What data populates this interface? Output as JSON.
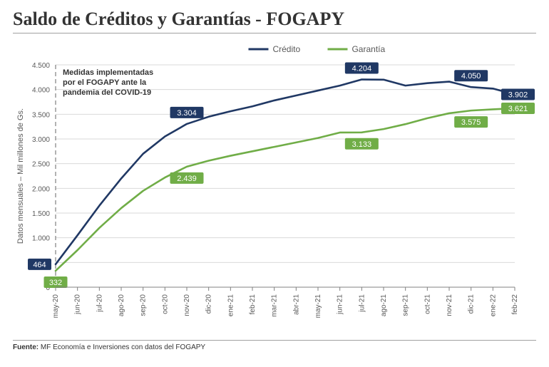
{
  "title": "Saldo de Créditos y Garantías - FOGAPY",
  "source_label": "Fuente:",
  "source_text": "MF Economía e Inversiones con datos del FOGAPY",
  "chart": {
    "type": "line",
    "background_color": "#ffffff",
    "grid_color": "#d9d9d9",
    "axis_label": "Datos mensuales – Mil millones de Gs.",
    "axis_label_fontsize": 11,
    "tick_fontsize": 10,
    "legend": {
      "items": [
        "Crédito",
        "Garantía"
      ],
      "fontsize": 12
    },
    "xlim": [
      0,
      21
    ],
    "ylim": [
      0,
      4500
    ],
    "ytick_step": 500,
    "yticks": [
      "0",
      "500",
      "1.000",
      "1.500",
      "2.000",
      "2.500",
      "3.000",
      "3.500",
      "4.000",
      "4.500"
    ],
    "categories": [
      "may-20",
      "jun-20",
      "jul-20",
      "ago-20",
      "sep-20",
      "oct-20",
      "nov-20",
      "dic-20",
      "ene-21",
      "feb-21",
      "mar-21",
      "abr-21",
      "may-21",
      "jun-21",
      "jul-21",
      "ago-21",
      "sep-21",
      "oct-21",
      "nov-21",
      "dic-21",
      "ene-22",
      "feb-22"
    ],
    "series": {
      "credito": {
        "label": "Crédito",
        "color": "#203864",
        "line_width": 2.6,
        "values": [
          464,
          1050,
          1650,
          2200,
          2700,
          3050,
          3304,
          3450,
          3560,
          3660,
          3780,
          3880,
          3980,
          4080,
          4204,
          4200,
          4080,
          4130,
          4160,
          4050,
          4020,
          3902
        ]
      },
      "garantia": {
        "label": "Garantía",
        "color": "#70ad47",
        "line_width": 2.6,
        "values": [
          332,
          750,
          1200,
          1600,
          1950,
          2220,
          2439,
          2560,
          2660,
          2750,
          2840,
          2930,
          3020,
          3130,
          3133,
          3200,
          3300,
          3420,
          3520,
          3575,
          3600,
          3621
        ]
      }
    },
    "annotation": {
      "text_lines": [
        "Medidas implementadas",
        "por el FOGAPY ante la",
        "pandemia del COVID-19"
      ],
      "x_index": 0,
      "fontsize": 11,
      "fontweight": "bold",
      "color": "#333333",
      "line_dash": "6 4",
      "line_color": "#7f7f7f"
    },
    "data_labels": [
      {
        "series": "credito",
        "x": 0,
        "value": 464,
        "text": "464",
        "pos": "left"
      },
      {
        "series": "garantia",
        "x": 0,
        "value": 332,
        "text": "332",
        "pos": "below"
      },
      {
        "series": "credito",
        "x": 6,
        "value": 3304,
        "text": "3.304",
        "pos": "above"
      },
      {
        "series": "garantia",
        "x": 6,
        "value": 2439,
        "text": "2.439",
        "pos": "below"
      },
      {
        "series": "credito",
        "x": 14,
        "value": 4204,
        "text": "4.204",
        "pos": "above"
      },
      {
        "series": "garantia",
        "x": 14,
        "value": 3133,
        "text": "3.133",
        "pos": "below"
      },
      {
        "series": "credito",
        "x": 19,
        "value": 4050,
        "text": "4.050",
        "pos": "above"
      },
      {
        "series": "garantia",
        "x": 19,
        "value": 3575,
        "text": "3.575",
        "pos": "below"
      },
      {
        "series": "credito",
        "x": 21,
        "value": 3902,
        "text": "3.902",
        "pos": "right"
      },
      {
        "series": "garantia",
        "x": 21,
        "value": 3621,
        "text": "3.621",
        "pos": "right"
      }
    ],
    "label_style": {
      "fontsize": 11,
      "padding": "2 6",
      "radius": 2,
      "text_color": "#ffffff"
    }
  }
}
